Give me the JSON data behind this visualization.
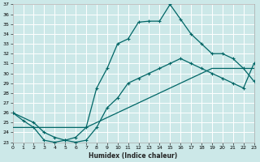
{
  "xlabel": "Humidex (Indice chaleur)",
  "xlim": [
    0,
    23
  ],
  "ylim": [
    23,
    37
  ],
  "xticks": [
    0,
    1,
    2,
    3,
    4,
    5,
    6,
    7,
    8,
    9,
    10,
    11,
    12,
    13,
    14,
    15,
    16,
    17,
    18,
    19,
    20,
    21,
    22,
    23
  ],
  "yticks": [
    23,
    24,
    25,
    26,
    27,
    28,
    29,
    30,
    31,
    32,
    33,
    34,
    35,
    36,
    37
  ],
  "bg_color": "#cce8e8",
  "grid_color": "#ffffff",
  "line_color": "#006666",
  "curve1_x": [
    0,
    1,
    2,
    3,
    4,
    5,
    6,
    7,
    8,
    9,
    10,
    11,
    12,
    13,
    14,
    15,
    16,
    17,
    18,
    19,
    20,
    21,
    22,
    23
  ],
  "curve1_y": [
    26.0,
    25.2,
    24.5,
    23.2,
    23.0,
    23.2,
    23.5,
    24.5,
    28.5,
    30.5,
    33.0,
    33.5,
    35.2,
    35.3,
    35.3,
    37.0,
    35.5,
    34.0,
    33.0,
    32.0,
    32.0,
    31.5,
    30.5,
    29.2
  ],
  "curve2_x": [
    0,
    2,
    3,
    4,
    5,
    6,
    7,
    8,
    9,
    10,
    11,
    12,
    13,
    14,
    15,
    16,
    17,
    18,
    19,
    20,
    21,
    22,
    23
  ],
  "curve2_y": [
    26.0,
    25.0,
    24.0,
    23.5,
    23.2,
    23.0,
    23.2,
    24.5,
    26.5,
    27.5,
    29.0,
    29.5,
    30.0,
    30.5,
    31.0,
    31.5,
    31.0,
    30.5,
    30.0,
    29.5,
    29.0,
    28.5,
    31.0
  ],
  "curve3_x": [
    0,
    1,
    2,
    3,
    4,
    5,
    6,
    7,
    8,
    9,
    10,
    11,
    12,
    13,
    14,
    15,
    16,
    17,
    18,
    19,
    20,
    21,
    22,
    23
  ],
  "curve3_y": [
    24.5,
    24.5,
    24.5,
    24.5,
    24.5,
    24.5,
    24.5,
    24.5,
    25.0,
    25.5,
    26.0,
    26.5,
    27.0,
    27.5,
    28.0,
    28.5,
    29.0,
    29.5,
    30.0,
    30.5,
    30.5,
    30.5,
    30.5,
    30.5
  ]
}
